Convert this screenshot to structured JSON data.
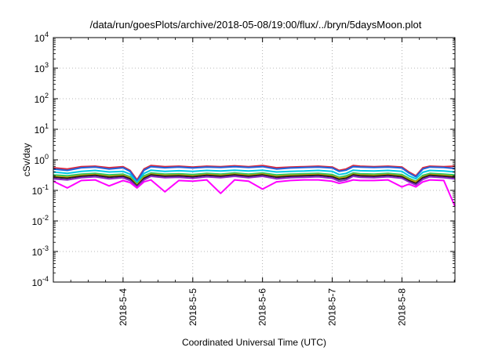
{
  "chart_data": {
    "type": "line",
    "title": "/data/run/goesPlots/archive/2018-05-08/19:00/flux/../bryn/5daysMoon.plot",
    "xlabel": "Coordinated Universal Time (UTC)",
    "ylabel": "cSv/day",
    "yscale": "log",
    "ylim": [
      0.0001,
      10000
    ],
    "xlim": [
      0,
      5.76
    ],
    "grid": true,
    "y_ticks": [
      {
        "value": 0.0001,
        "base": "10",
        "exp": "-4"
      },
      {
        "value": 0.001,
        "base": "10",
        "exp": "-3"
      },
      {
        "value": 0.01,
        "base": "10",
        "exp": "-2"
      },
      {
        "value": 0.1,
        "base": "10",
        "exp": "-1"
      },
      {
        "value": 1,
        "base": "10",
        "exp": "0"
      },
      {
        "value": 10,
        "base": "10",
        "exp": "1"
      },
      {
        "value": 100,
        "base": "10",
        "exp": "2"
      },
      {
        "value": 1000,
        "base": "10",
        "exp": "3"
      },
      {
        "value": 10000,
        "base": "10",
        "exp": "4"
      }
    ],
    "x_ticks": [
      {
        "value": 1.0,
        "label": "2018-5-4"
      },
      {
        "value": 2.0,
        "label": "2018-5-5"
      },
      {
        "value": 3.0,
        "label": "2018-5-6"
      },
      {
        "value": 4.0,
        "label": "2018-5-7"
      },
      {
        "value": 5.0,
        "label": "2018-5-8"
      }
    ],
    "x": [
      0,
      0.2,
      0.4,
      0.6,
      0.8,
      1.0,
      1.1,
      1.2,
      1.3,
      1.4,
      1.6,
      1.8,
      2.0,
      2.2,
      2.4,
      2.6,
      2.8,
      3.0,
      3.2,
      3.4,
      3.6,
      3.8,
      4.0,
      4.1,
      4.2,
      4.3,
      4.4,
      4.6,
      4.8,
      5.0,
      5.1,
      5.2,
      5.3,
      5.4,
      5.6,
      5.76
    ],
    "series": [
      {
        "name": "series-red",
        "color": "#e0283c",
        "values": [
          0.55,
          0.5,
          0.6,
          0.62,
          0.55,
          0.6,
          0.45,
          0.22,
          0.5,
          0.65,
          0.6,
          0.62,
          0.58,
          0.62,
          0.6,
          0.64,
          0.6,
          0.65,
          0.55,
          0.58,
          0.6,
          0.62,
          0.58,
          0.45,
          0.5,
          0.65,
          0.62,
          0.6,
          0.62,
          0.58,
          0.4,
          0.3,
          0.55,
          0.62,
          0.6,
          0.62
        ]
      },
      {
        "name": "series-blue",
        "color": "#1e64dc",
        "values": [
          0.5,
          0.45,
          0.55,
          0.58,
          0.5,
          0.55,
          0.42,
          0.2,
          0.46,
          0.6,
          0.55,
          0.58,
          0.54,
          0.58,
          0.56,
          0.6,
          0.56,
          0.6,
          0.5,
          0.54,
          0.56,
          0.58,
          0.54,
          0.42,
          0.46,
          0.6,
          0.58,
          0.56,
          0.58,
          0.54,
          0.37,
          0.28,
          0.5,
          0.58,
          0.56,
          0.52
        ]
      },
      {
        "name": "series-cyan",
        "color": "#00c8e6",
        "values": [
          0.4,
          0.36,
          0.42,
          0.45,
          0.4,
          0.42,
          0.34,
          0.18,
          0.36,
          0.46,
          0.42,
          0.44,
          0.42,
          0.45,
          0.43,
          0.46,
          0.43,
          0.46,
          0.4,
          0.42,
          0.43,
          0.45,
          0.42,
          0.33,
          0.36,
          0.46,
          0.44,
          0.43,
          0.45,
          0.42,
          0.3,
          0.24,
          0.39,
          0.45,
          0.43,
          0.4
        ]
      },
      {
        "name": "series-green",
        "color": "#28c864",
        "values": [
          0.32,
          0.3,
          0.34,
          0.36,
          0.32,
          0.34,
          0.28,
          0.16,
          0.3,
          0.37,
          0.34,
          0.35,
          0.33,
          0.36,
          0.34,
          0.37,
          0.34,
          0.37,
          0.32,
          0.34,
          0.35,
          0.36,
          0.33,
          0.27,
          0.3,
          0.37,
          0.35,
          0.34,
          0.36,
          0.33,
          0.25,
          0.2,
          0.31,
          0.36,
          0.34,
          0.32
        ]
      },
      {
        "name": "series-gold",
        "color": "#c8a000",
        "values": [
          0.29,
          0.27,
          0.31,
          0.33,
          0.29,
          0.31,
          0.26,
          0.15,
          0.27,
          0.34,
          0.31,
          0.32,
          0.3,
          0.33,
          0.31,
          0.34,
          0.31,
          0.34,
          0.29,
          0.31,
          0.32,
          0.33,
          0.3,
          0.25,
          0.27,
          0.34,
          0.32,
          0.31,
          0.33,
          0.3,
          0.23,
          0.19,
          0.28,
          0.33,
          0.31,
          0.29
        ]
      },
      {
        "name": "series-black",
        "color": "#222222",
        "values": [
          0.27,
          0.25,
          0.29,
          0.31,
          0.27,
          0.29,
          0.24,
          0.14,
          0.25,
          0.32,
          0.29,
          0.3,
          0.28,
          0.31,
          0.29,
          0.32,
          0.29,
          0.32,
          0.27,
          0.29,
          0.3,
          0.31,
          0.28,
          0.23,
          0.25,
          0.32,
          0.3,
          0.29,
          0.31,
          0.28,
          0.21,
          0.17,
          0.26,
          0.31,
          0.29,
          0.27
        ]
      },
      {
        "name": "series-purple",
        "color": "#8c28c8",
        "values": [
          0.24,
          0.22,
          0.26,
          0.28,
          0.24,
          0.26,
          0.21,
          0.13,
          0.22,
          0.29,
          0.26,
          0.27,
          0.25,
          0.28,
          0.26,
          0.29,
          0.26,
          0.29,
          0.24,
          0.26,
          0.27,
          0.28,
          0.25,
          0.2,
          0.22,
          0.29,
          0.27,
          0.26,
          0.28,
          0.25,
          0.19,
          0.15,
          0.23,
          0.28,
          0.26,
          0.24
        ]
      },
      {
        "name": "series-magenta",
        "color": "#ff00ff",
        "values": [
          0.2,
          0.12,
          0.21,
          0.22,
          0.14,
          0.21,
          0.18,
          0.12,
          0.19,
          0.22,
          0.09,
          0.21,
          0.2,
          0.22,
          0.08,
          0.22,
          0.2,
          0.11,
          0.19,
          0.21,
          0.22,
          0.22,
          0.2,
          0.17,
          0.19,
          0.22,
          0.21,
          0.21,
          0.22,
          0.13,
          0.16,
          0.13,
          0.19,
          0.22,
          0.21,
          0.03
        ]
      }
    ]
  }
}
